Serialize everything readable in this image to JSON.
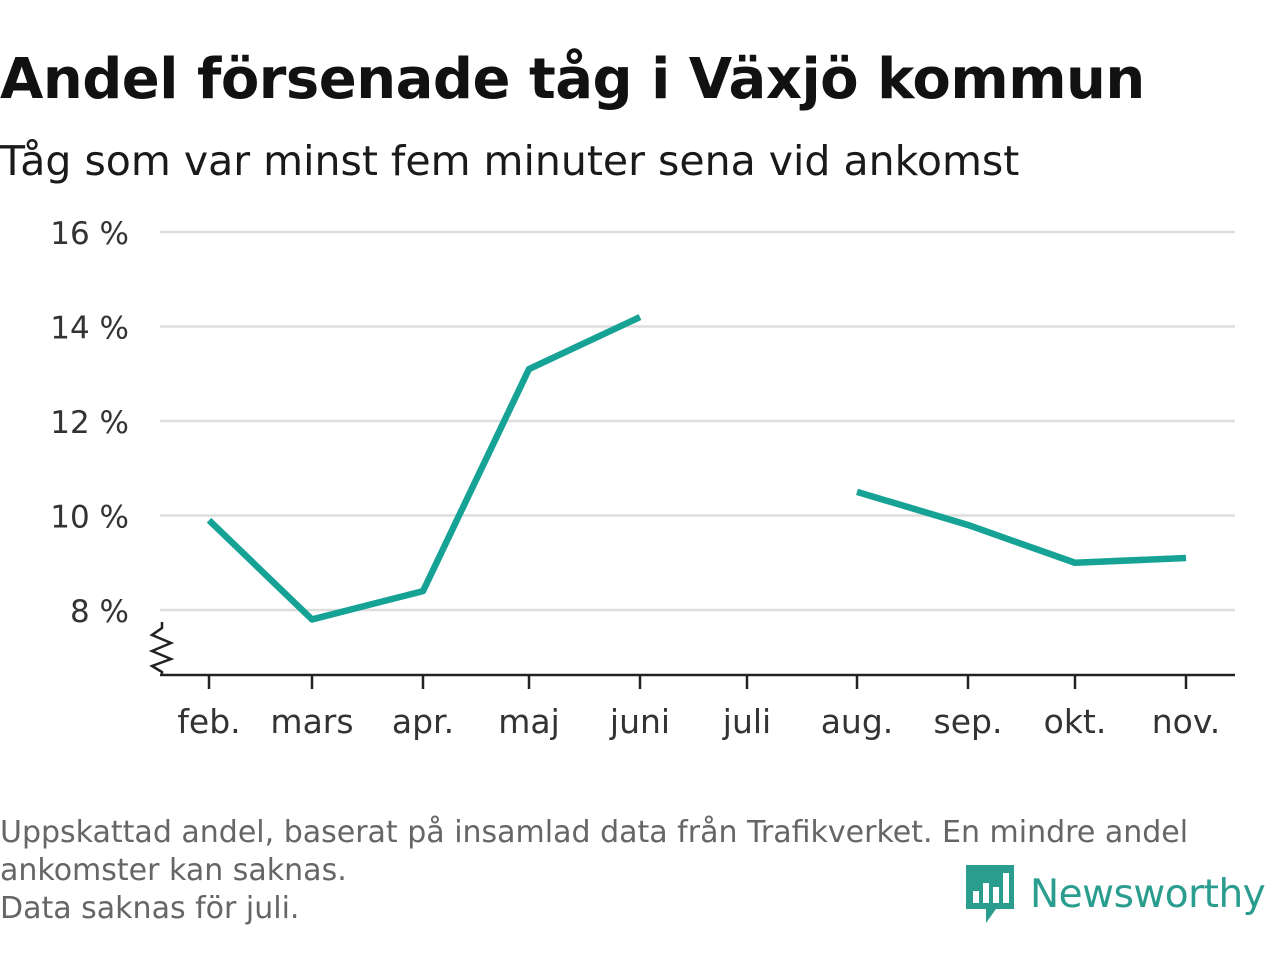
{
  "header": {
    "title": "Andel försenade tåg i Växjö kommun",
    "subtitle": "Tåg som var minst fem minuter sena vid ankomst"
  },
  "chart_data": {
    "type": "line",
    "categories": [
      "feb.",
      "mars",
      "apr.",
      "maj",
      "juni",
      "juli",
      "aug.",
      "sep.",
      "okt.",
      "nov."
    ],
    "series": [
      {
        "values": [
          9.9,
          7.8,
          8.4,
          13.1,
          14.2,
          null,
          10.5,
          9.8,
          9.0,
          9.1
        ],
        "color": "#16a396"
      }
    ],
    "yticks": [
      "16 %",
      "14 %",
      "12 %",
      "10 %",
      "8 %"
    ],
    "ytick_values": [
      16,
      14,
      12,
      10,
      8
    ],
    "ylim": [
      7,
      16
    ],
    "axis_break": true,
    "grid": true,
    "legend": "none",
    "xlabel": "",
    "ylabel": ""
  },
  "footer": {
    "note_lines": [
      "Uppskattad andel, baserat på insamlad data från Trafikverket. En mindre andel",
      "ankomster kan saknas.",
      "Data saknas för juli."
    ],
    "brand_name": "Newsworthy",
    "brand_icon": "newsworthy-logo-icon",
    "brand_color": "#2a9d8f"
  }
}
